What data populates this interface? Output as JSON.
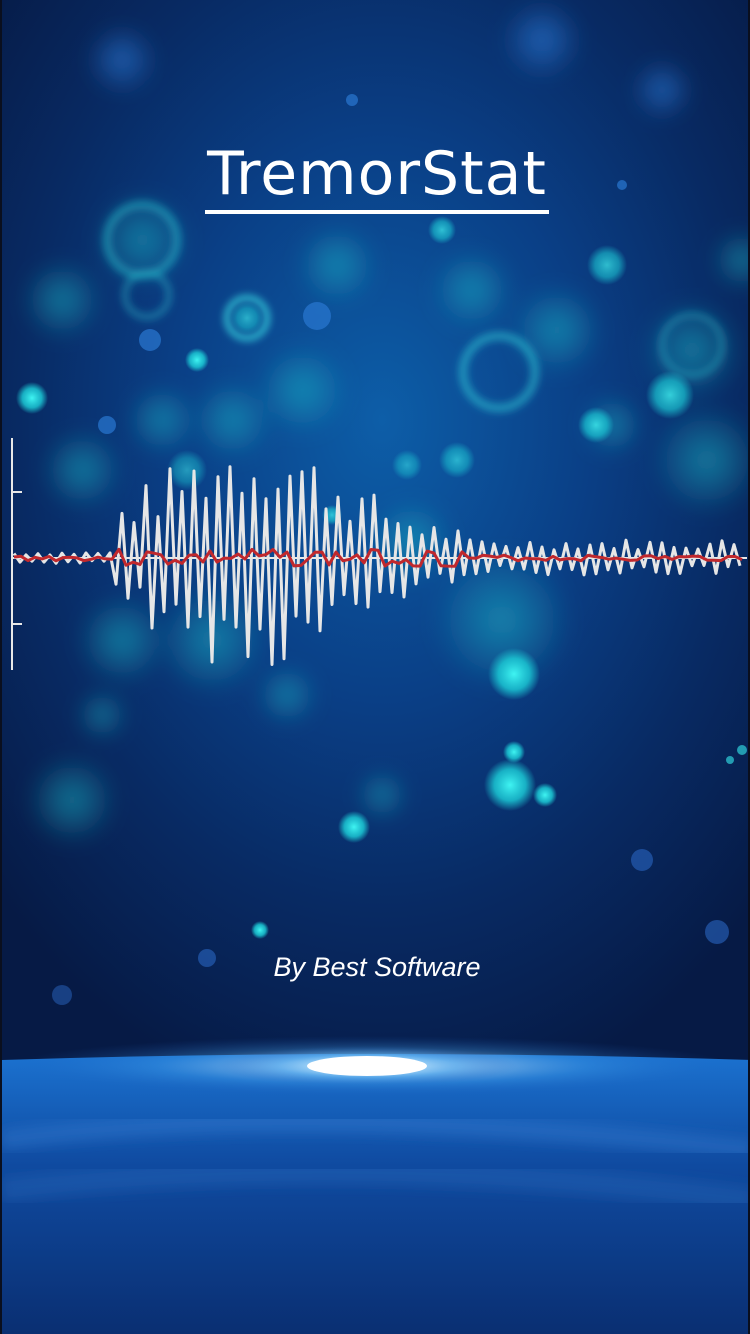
{
  "app": {
    "title": "TremorStat",
    "byline": "By Best Software"
  },
  "colors": {
    "background": "#082a63",
    "accent_cyan": "#22e3e6",
    "raw_signal": "#e6e6e6",
    "filtered_signal": "#c0282d"
  },
  "icons": [
    "tremor-waveform-graphic",
    "bokeh-background",
    "horizon-glow"
  ]
}
